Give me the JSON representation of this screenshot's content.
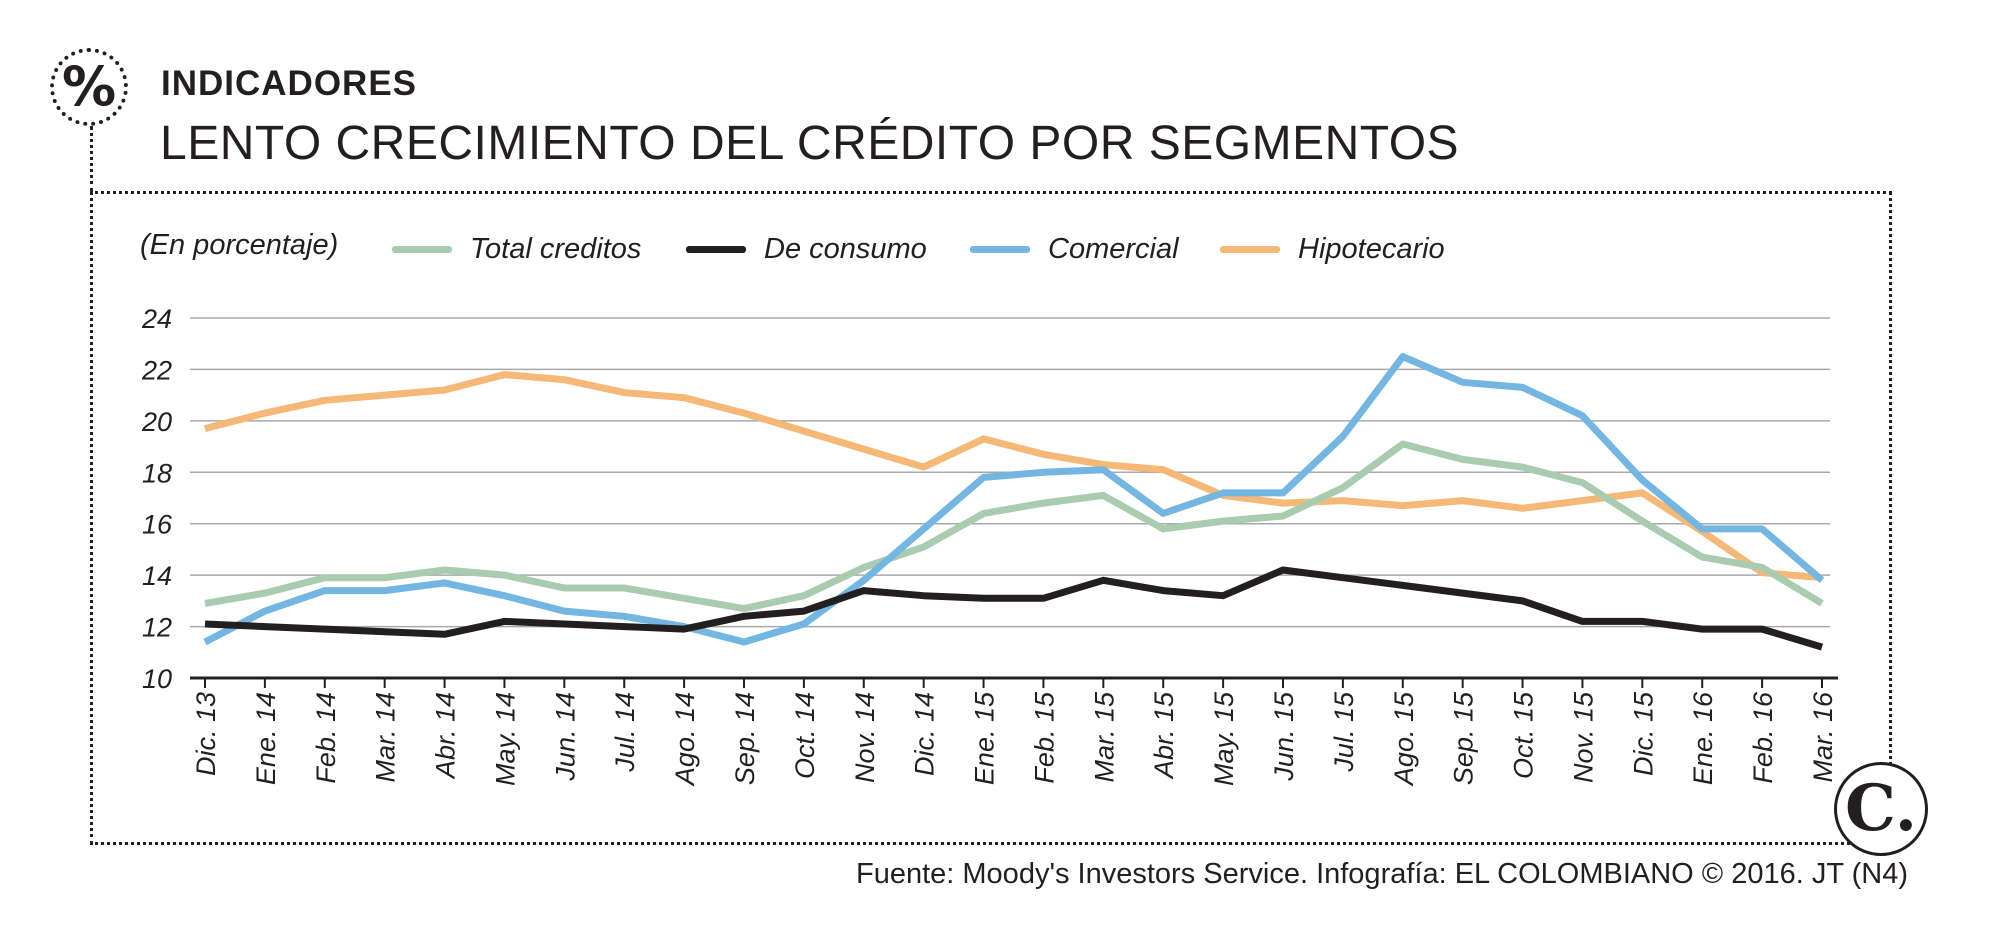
{
  "header": {
    "icon": "percent-icon",
    "icon_glyph": "%",
    "kicker": "INDICADORES",
    "title": "LENTO CRECIMIENTO DEL CRÉDITO POR SEGMENTOS"
  },
  "footer": {
    "source": "Fuente: Moody's Investors Service. Infografía: EL COLOMBIANO © 2016. JT (N4)",
    "logo_icon": "el-colombiano-logo-icon",
    "logo_glyph": "C."
  },
  "chart_data": {
    "type": "line",
    "title": "LENTO CRECIMIENTO DEL CRÉDITO POR SEGMENTOS",
    "ylabel": "(En porcentaje)",
    "xlabel": "",
    "ylim": [
      10,
      24
    ],
    "yticks": [
      10,
      12,
      14,
      16,
      18,
      20,
      22,
      24
    ],
    "grid": true,
    "legend_position": "top",
    "categories": [
      "Dic. 13",
      "Ene. 14",
      "Feb. 14",
      "Mar. 14",
      "Abr. 14",
      "May. 14",
      "Jun. 14",
      "Jul. 14",
      "Ago. 14",
      "Sep. 14",
      "Oct. 14",
      "Nov. 14",
      "Dic. 14",
      "Ene. 15",
      "Feb. 15",
      "Mar. 15",
      "Abr. 15",
      "May. 15",
      "Jun. 15",
      "Jul. 15",
      "Ago. 15",
      "Sep. 15",
      "Oct. 15",
      "Nov. 15",
      "Dic. 15",
      "Ene. 16",
      "Feb. 16",
      "Mar. 16"
    ],
    "series": [
      {
        "name": "Total creditos",
        "color": "#a9cbb0",
        "values": [
          12.9,
          13.3,
          13.9,
          13.9,
          14.2,
          14.0,
          13.5,
          13.5,
          13.1,
          12.7,
          13.2,
          14.3,
          15.1,
          16.4,
          16.8,
          17.1,
          15.8,
          16.1,
          16.3,
          17.4,
          19.1,
          18.5,
          18.2,
          17.6,
          16.1,
          14.7,
          14.3,
          12.9
        ]
      },
      {
        "name": "De consumo",
        "color": "#231f20",
        "values": [
          12.1,
          12.0,
          11.9,
          11.8,
          11.7,
          12.2,
          12.1,
          12.0,
          11.9,
          12.4,
          12.6,
          13.4,
          13.2,
          13.1,
          13.1,
          13.8,
          13.4,
          13.2,
          14.2,
          13.9,
          13.6,
          13.3,
          13.0,
          12.2,
          12.2,
          11.9,
          11.9,
          11.2
        ]
      },
      {
        "name": "Comercial",
        "color": "#74b6e2",
        "values": [
          11.4,
          12.6,
          13.4,
          13.4,
          13.7,
          13.2,
          12.6,
          12.4,
          12.0,
          11.4,
          12.1,
          13.8,
          15.8,
          17.8,
          18.0,
          18.1,
          16.4,
          17.2,
          17.2,
          19.4,
          22.5,
          21.5,
          21.3,
          20.2,
          17.7,
          15.8,
          15.8,
          13.8
        ]
      },
      {
        "name": "Hipotecario",
        "color": "#f5b877",
        "values": [
          19.7,
          20.3,
          20.8,
          21.0,
          21.2,
          21.8,
          21.6,
          21.1,
          20.9,
          20.3,
          19.6,
          18.9,
          18.2,
          19.3,
          18.7,
          18.3,
          18.1,
          17.1,
          16.8,
          16.9,
          16.7,
          16.9,
          16.6,
          16.9,
          17.2,
          15.7,
          14.1,
          13.9
        ]
      }
    ]
  }
}
